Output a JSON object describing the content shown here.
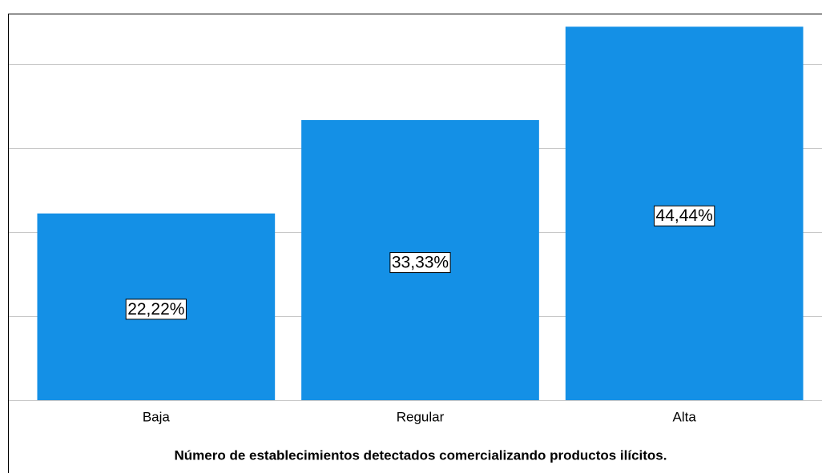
{
  "chart_data": {
    "type": "bar",
    "x_label": "Número de establecimientos detectados comercializando productos ilícitos.",
    "categories": [
      "Baja",
      "Regular",
      "Alta"
    ],
    "values": [
      22.22,
      33.33,
      44.44
    ],
    "value_labels": [
      "22,22%",
      "33,33%",
      "44,44%"
    ],
    "color": "#1490e6",
    "ylim": [
      0,
      46
    ],
    "yticks": [
      0,
      10,
      20,
      30,
      40
    ],
    "grid": true
  }
}
